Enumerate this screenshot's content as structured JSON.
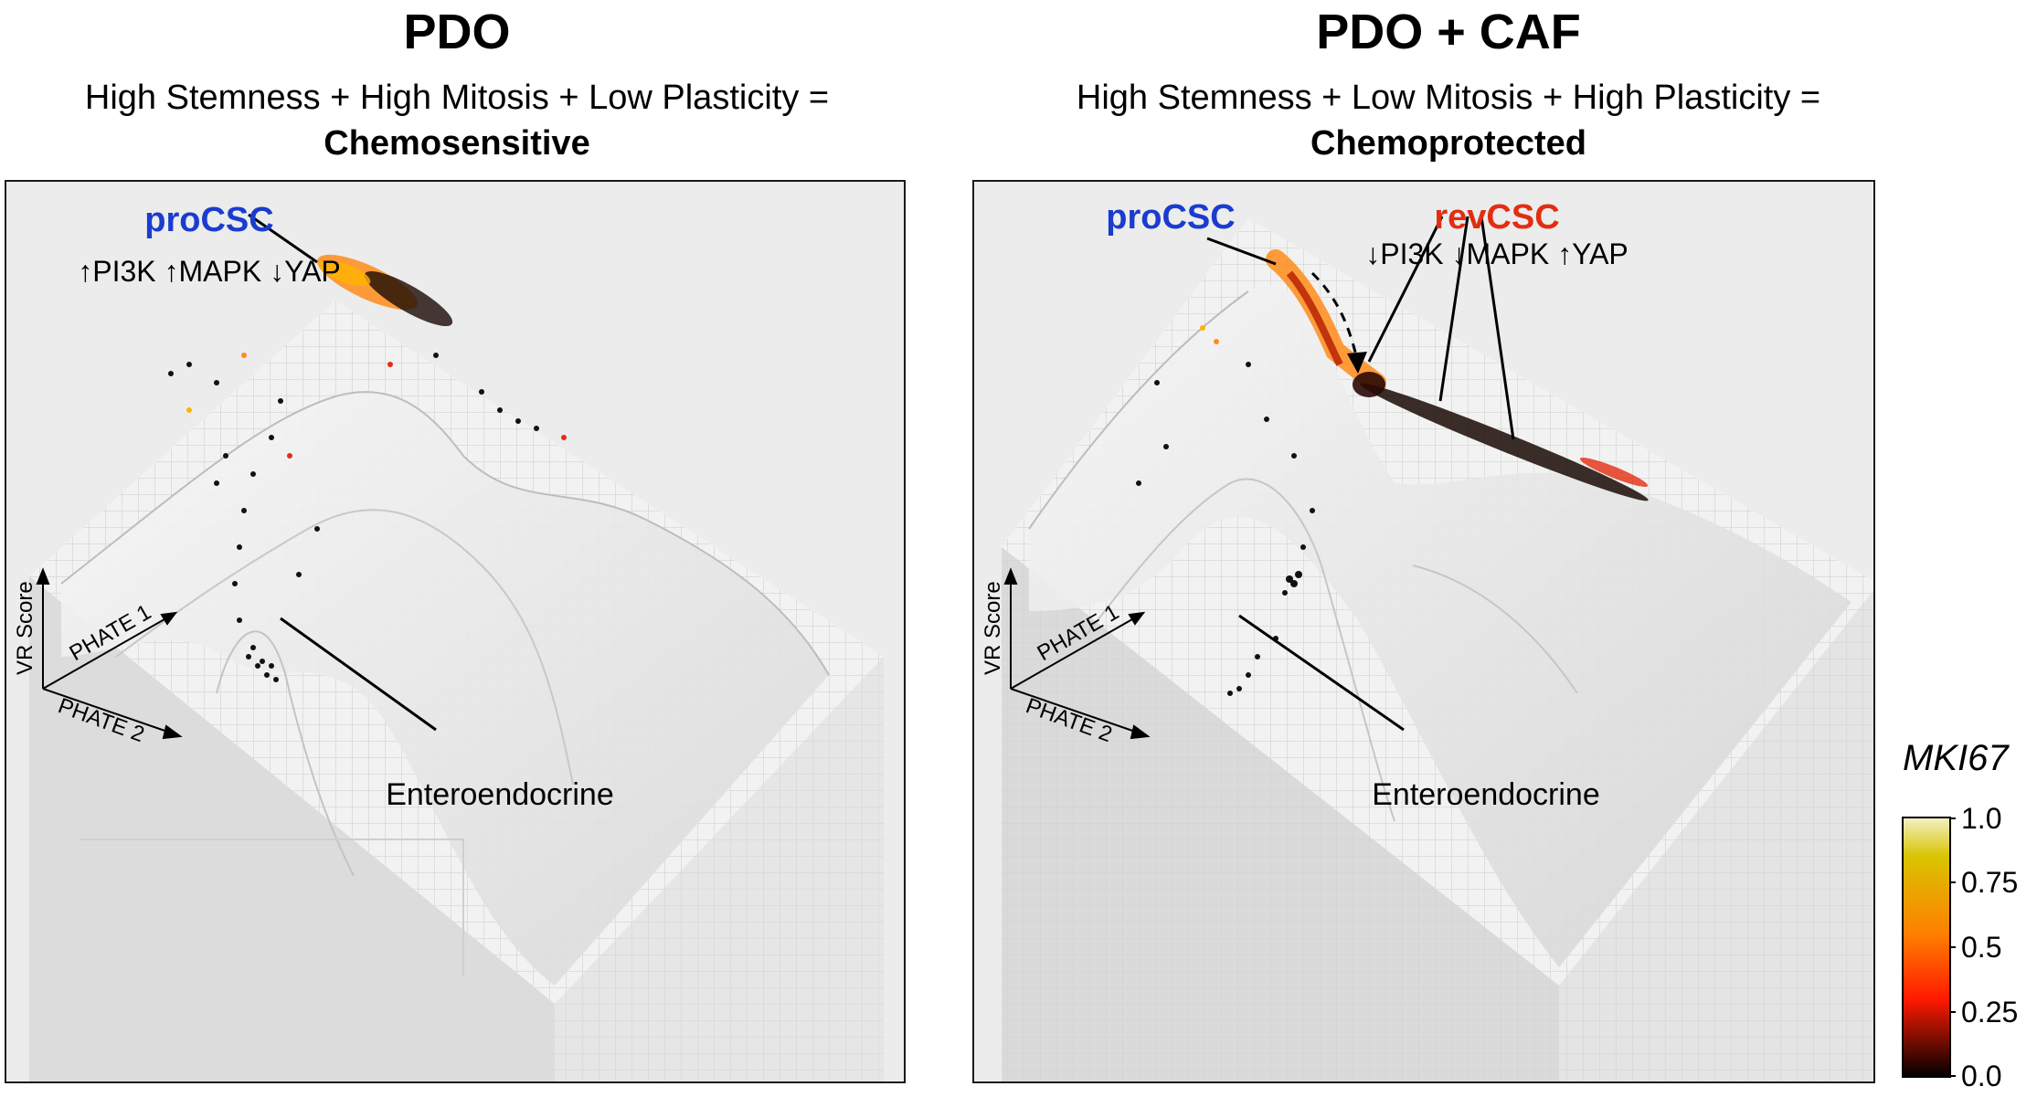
{
  "panels": [
    {
      "title": "PDO",
      "subtitle_line1": "High Stemness + High Mitosis + Low Plasticity =",
      "subtitle_line2": "Chemosensitive",
      "label_procsc": "proCSC",
      "pathway_procsc": "↑PI3K ↑MAPK ↓YAP",
      "label_entero": "Enteroendocrine",
      "axis_vr": "VR Score",
      "axis_phate1": "PHATE 1",
      "axis_phate2": "PHATE 2"
    },
    {
      "title": "PDO + CAF",
      "subtitle_line1": "High Stemness + Low Mitosis + High Plasticity =",
      "subtitle_line2": "Chemoprotected",
      "label_procsc": "proCSC",
      "label_revcsc": "revCSC",
      "pathway_revcsc": "↓PI3K ↓MAPK ↑YAP",
      "label_entero": "Enteroendocrine",
      "axis_vr": "VR Score",
      "axis_phate1": "PHATE 1",
      "axis_phate2": "PHATE 2"
    }
  ],
  "colorbar": {
    "title": "MKI67",
    "ticks": [
      "1.0",
      "0.75",
      "0.5",
      "0.25",
      "0.0"
    ],
    "colors": [
      "#f4f1c8",
      "#d9c400",
      "#ff7f00",
      "#ff1a00",
      "#000000"
    ]
  },
  "colors": {
    "procsc": "#1a3ccf",
    "revcsc": "#e32d12"
  }
}
